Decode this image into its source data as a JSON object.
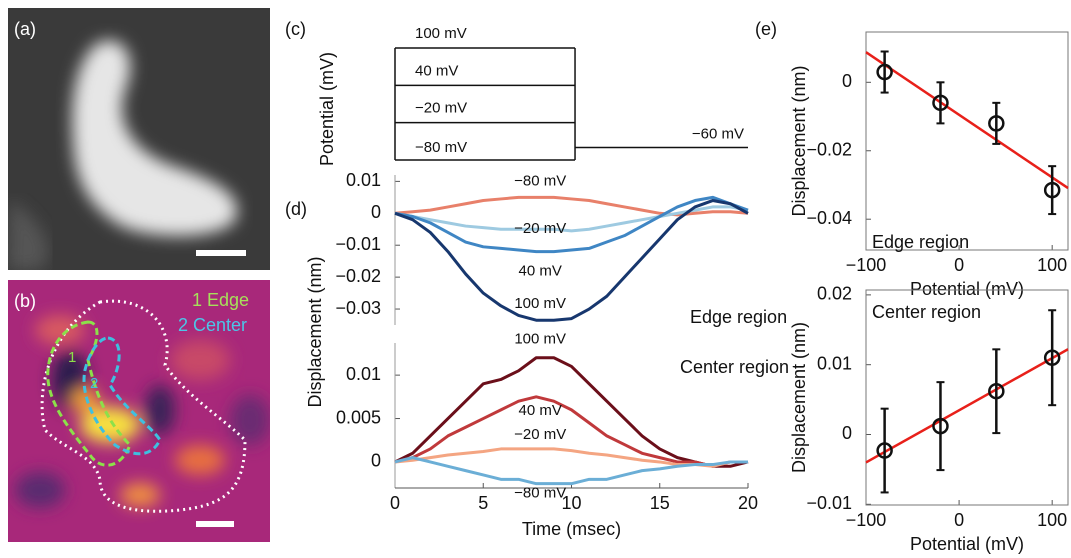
{
  "panels": {
    "a": {
      "label": "(a)"
    },
    "b": {
      "label": "(b)",
      "legend": [
        "1 Edge",
        "2 Center"
      ],
      "region_labels": [
        "1",
        "2"
      ]
    }
  },
  "chart_data": [
    {
      "type": "step",
      "label": "(c)",
      "ylabel": "Potential (mV)",
      "values": [
        100,
        40,
        -20,
        -80
      ],
      "value_labels": [
        "100 mV",
        "40 mV",
        "−20 mV",
        "−80 mV"
      ],
      "holding": -60,
      "holding_label": "−60 mV",
      "step_x": [
        0,
        10.2
      ],
      "xlim": [
        0,
        20
      ],
      "ylim": [
        -80,
        100
      ]
    },
    {
      "type": "line",
      "label": "(d)",
      "ylabel": "Displacement (nm)",
      "annotation": "Edge region",
      "x": [
        0,
        1,
        2,
        3,
        4,
        5,
        6,
        7,
        8,
        9,
        10,
        11,
        12,
        13,
        14,
        15,
        16,
        17,
        18,
        19,
        20
      ],
      "xlim": [
        0,
        20
      ],
      "ylim": [
        -0.035,
        0.012
      ],
      "yticks": [
        0.01,
        0,
        {
          "value": -0.01,
          "label": "−0.01"
        },
        {
          "value": -0.02,
          "label": "−0.02"
        },
        {
          "value": -0.03,
          "label": "−0.03"
        }
      ],
      "series": [
        {
          "name": "−80 mV",
          "color": "#e8806a",
          "values": [
            0,
            0.0005,
            0.001,
            0.002,
            0.003,
            0.004,
            0.0045,
            0.005,
            0.005,
            0.005,
            0.0045,
            0.004,
            0.003,
            0.002,
            0.001,
            0,
            -0.0005,
            0,
            0.0005,
            0.0005,
            0
          ]
        },
        {
          "name": "−20 mV",
          "color": "#9ecae1",
          "values": [
            0,
            -0.001,
            -0.002,
            -0.003,
            -0.004,
            -0.0045,
            -0.005,
            -0.005,
            -0.005,
            -0.005,
            -0.0055,
            -0.005,
            -0.004,
            -0.003,
            -0.002,
            -0.001,
            0,
            0.001,
            0.002,
            0.002,
            0.001
          ]
        },
        {
          "name": "40 mV",
          "color": "#3f86c4",
          "values": [
            0,
            -0.001,
            -0.003,
            -0.006,
            -0.009,
            -0.0105,
            -0.011,
            -0.0115,
            -0.012,
            -0.012,
            -0.0115,
            -0.011,
            -0.009,
            -0.007,
            -0.004,
            -0.001,
            0.002,
            0.004,
            0.005,
            0.003,
            0.001
          ]
        },
        {
          "name": "100 mV",
          "color": "#17376e",
          "values": [
            0,
            -0.002,
            -0.006,
            -0.012,
            -0.019,
            -0.025,
            -0.029,
            -0.032,
            -0.0335,
            -0.0335,
            -0.033,
            -0.03,
            -0.026,
            -0.02,
            -0.014,
            -0.008,
            -0.002,
            0.002,
            0.004,
            0.003,
            0
          ]
        }
      ]
    },
    {
      "type": "line",
      "xlabel": "Time (msec)",
      "annotation": "Center region",
      "x": [
        0,
        1,
        2,
        3,
        4,
        5,
        6,
        7,
        8,
        9,
        10,
        11,
        12,
        13,
        14,
        15,
        16,
        17,
        18,
        19,
        20
      ],
      "xlim": [
        0,
        20
      ],
      "xticks": [
        0,
        5,
        10,
        15,
        20
      ],
      "ylim": [
        -0.003,
        0.0137
      ],
      "yticks": [
        0.01,
        0.005,
        0
      ],
      "series": [
        {
          "name": "100 mV",
          "color": "#6b0f1a",
          "values": [
            0,
            0.001,
            0.003,
            0.005,
            0.007,
            0.009,
            0.0095,
            0.0105,
            0.012,
            0.012,
            0.011,
            0.009,
            0.007,
            0.005,
            0.003,
            0.0015,
            0.0005,
            0,
            -0.0005,
            -0.0005,
            0
          ]
        },
        {
          "name": "40 mV",
          "color": "#c0393b",
          "values": [
            0,
            0.0005,
            0.0015,
            0.003,
            0.004,
            0.005,
            0.006,
            0.007,
            0.0075,
            0.007,
            0.006,
            0.0045,
            0.003,
            0.002,
            0.001,
            0.0005,
            0,
            0,
            -0.0005,
            0,
            0
          ]
        },
        {
          "name": "−20 mV",
          "color": "#f4a582",
          "values": [
            0,
            0.0002,
            0.0005,
            0.0008,
            0.001,
            0.0012,
            0.0015,
            0.0015,
            0.0015,
            0.0015,
            0.0013,
            0.001,
            0.0008,
            0.0005,
            0.0002,
            0,
            -0.0003,
            -0.0003,
            -0.0005,
            0,
            0
          ]
        },
        {
          "name": "−80 mV",
          "color": "#6baed6",
          "values": [
            0,
            0.0005,
            0,
            -0.0005,
            -0.001,
            -0.0015,
            -0.002,
            -0.002,
            -0.0025,
            -0.0025,
            -0.0025,
            -0.002,
            -0.002,
            -0.0015,
            -0.001,
            -0.0008,
            -0.0005,
            -0.0003,
            -0.0003,
            0,
            0
          ]
        }
      ]
    },
    {
      "type": "scatter",
      "label": "(e)",
      "xlabel": "Potential (mV)",
      "ylabel": "Displacement (nm)",
      "annotation": "Edge region",
      "x": [
        -80,
        -20,
        40,
        100
      ],
      "values": [
        0.003,
        -0.006,
        -0.012,
        -0.0315
      ],
      "errors": [
        0.006,
        0.006,
        0.006,
        0.007
      ],
      "fit": {
        "slope": -0.000183,
        "intercept": -0.0095,
        "color": "#e8201a"
      },
      "xlim": [
        -100,
        117
      ],
      "xticks": [
        {
          "value": -100,
          "label": "−100"
        },
        0,
        100
      ],
      "ylim": [
        -0.049,
        0.0147
      ],
      "yticks": [
        0,
        {
          "value": -0.02,
          "label": "−0.02"
        },
        {
          "value": -0.04,
          "label": "−0.04"
        }
      ]
    },
    {
      "type": "scatter",
      "xlabel": "Potential (mV)",
      "ylabel": "Displacement (nm)",
      "annotation": "Center region",
      "x": [
        -80,
        -20,
        40,
        100
      ],
      "values": [
        -0.0023,
        0.0012,
        0.0062,
        0.011
      ],
      "errors": [
        0.006,
        0.0063,
        0.006,
        0.0068
      ],
      "fit": {
        "slope": 7.47e-05,
        "intercept": 0.00347,
        "color": "#e8201a"
      },
      "xlim": [
        -100,
        117
      ],
      "xticks": [
        {
          "value": -100,
          "label": "−100"
        },
        0,
        100
      ],
      "ylim": [
        -0.0101,
        0.0207
      ],
      "yticks": [
        0.02,
        0.01,
        0,
        {
          "value": -0.01,
          "label": "−0.01"
        }
      ]
    }
  ]
}
